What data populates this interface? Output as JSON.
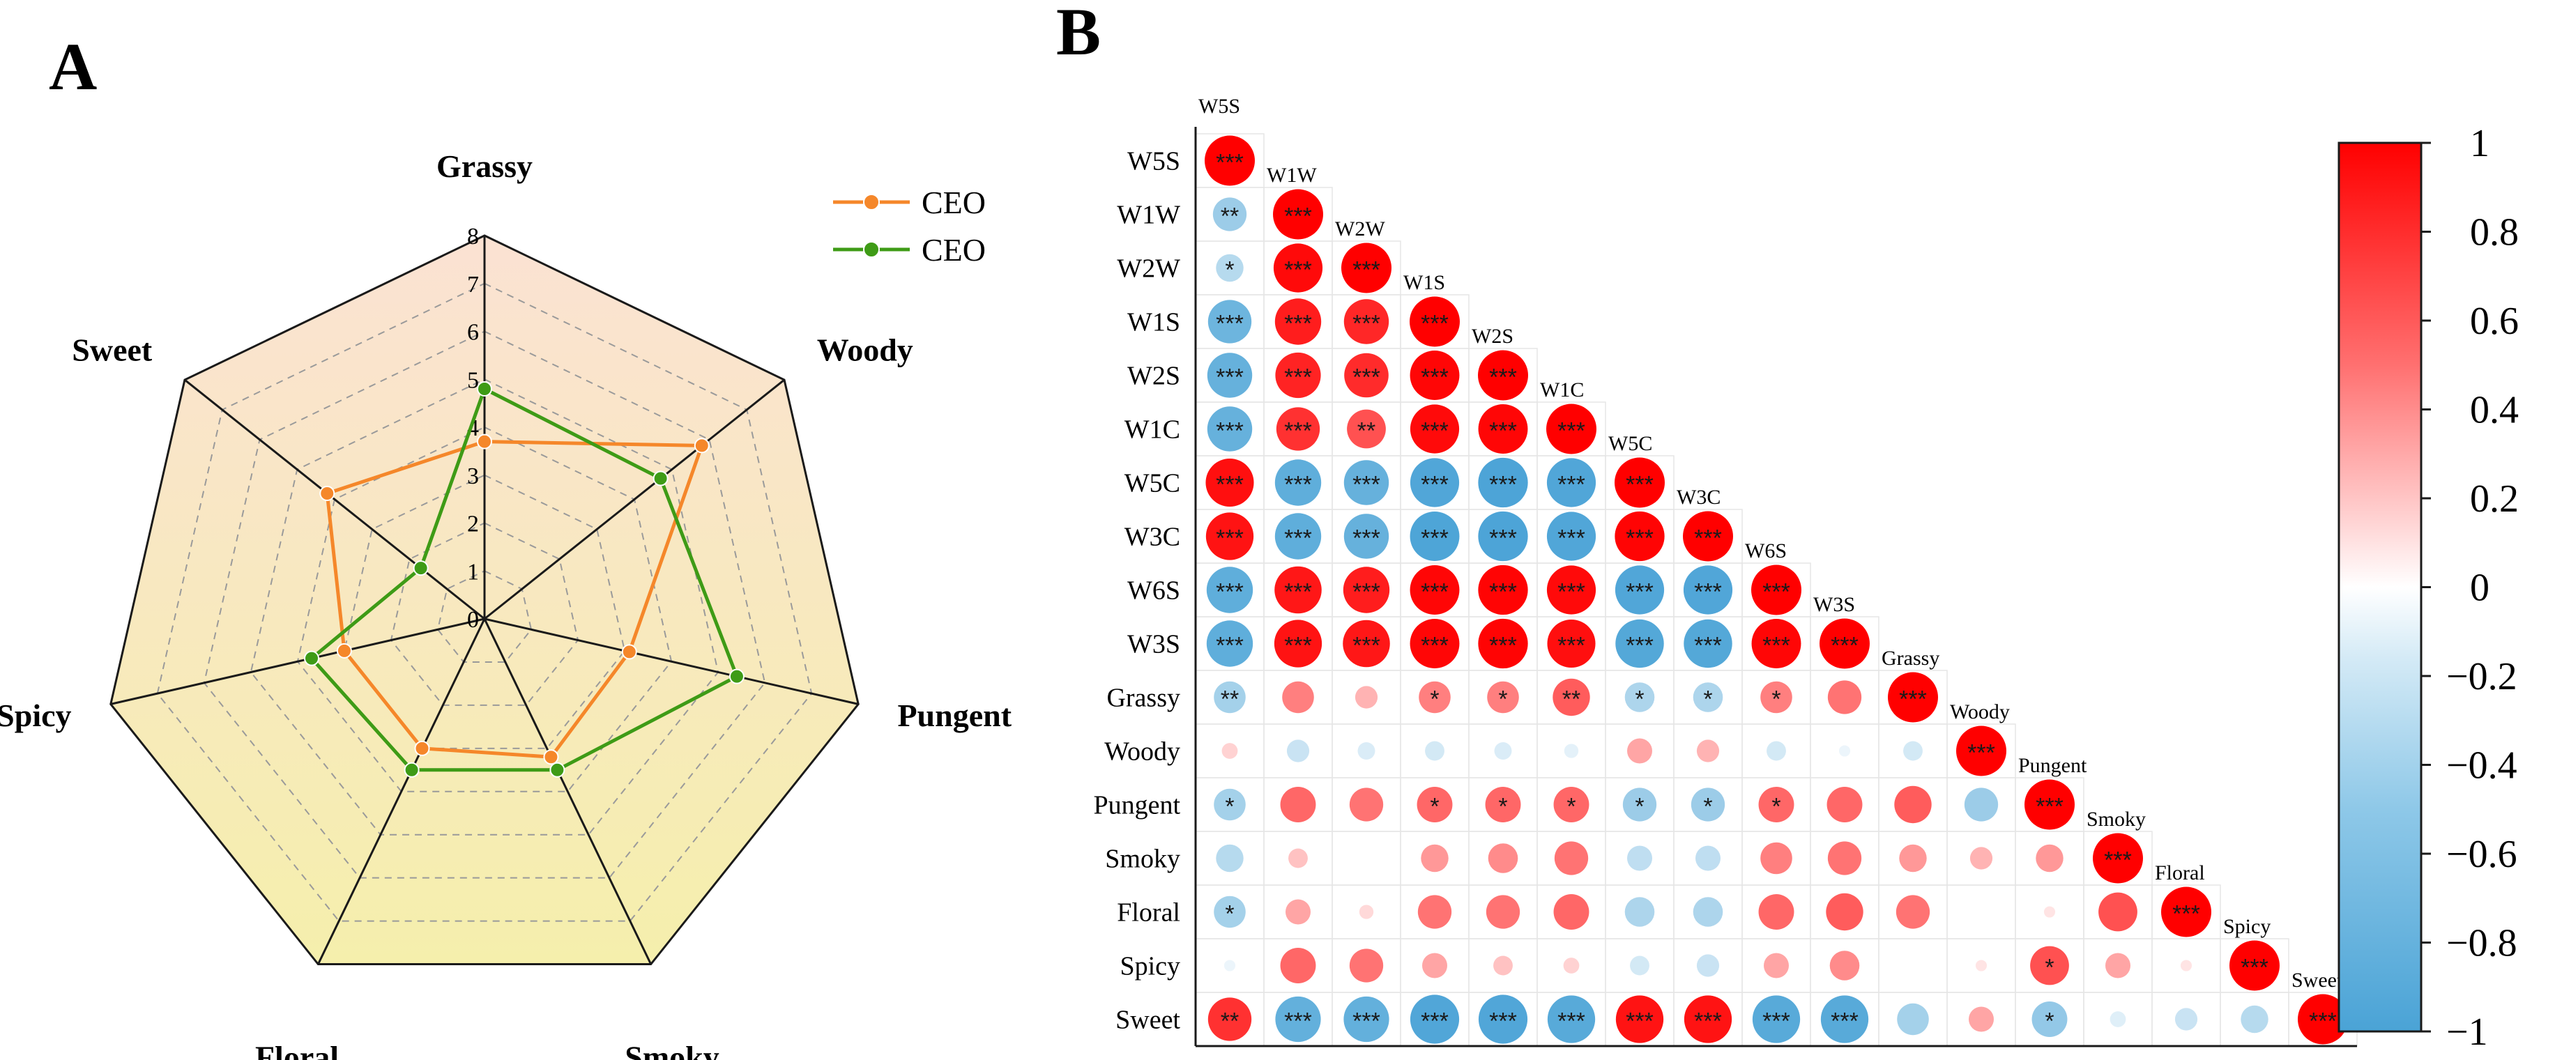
{
  "panels": {
    "a_label": "A",
    "b_label": "B"
  },
  "chart_data": [
    {
      "type": "radar",
      "axes": [
        "Grassy",
        "Woody",
        "Pungent",
        "Smoky",
        "Floral",
        "Spicy",
        "Sweet"
      ],
      "rlim": [
        0,
        8
      ],
      "r_ticks": [
        "0",
        "1",
        "2",
        "3",
        "4",
        "5",
        "6",
        "7",
        "8"
      ],
      "legend_position": "top-right",
      "series": [
        {
          "name": "CEO",
          "color": "#f5872a",
          "values": [
            3.7,
            5.8,
            3.1,
            3.2,
            3.0,
            3.0,
            4.2
          ]
        },
        {
          "name": "CEO",
          "color": "#3e9b16",
          "values": [
            4.8,
            4.7,
            5.4,
            3.5,
            3.5,
            3.7,
            1.7
          ]
        }
      ]
    },
    {
      "type": "correlation_matrix",
      "variables": [
        "W5S",
        "W1W",
        "W2W",
        "W1S",
        "W2S",
        "W1C",
        "W5C",
        "W3C",
        "W6S",
        "W3S",
        "Grassy",
        "Woody",
        "Pungent",
        "Smoky",
        "Floral",
        "Spicy",
        "Sweet"
      ],
      "matrix": [
        [
          1
        ],
        [
          -0.45,
          1
        ],
        [
          -0.3,
          0.95,
          1
        ],
        [
          -0.75,
          0.85,
          0.8,
          1
        ],
        [
          -0.8,
          0.82,
          0.78,
          0.97,
          1
        ],
        [
          -0.8,
          0.75,
          0.6,
          0.95,
          0.97,
          1
        ],
        [
          0.92,
          -0.85,
          -0.8,
          -0.95,
          -0.98,
          -0.95,
          1
        ],
        [
          0.9,
          -0.85,
          -0.8,
          -0.97,
          -0.98,
          -0.95,
          0.98,
          1
        ],
        [
          -0.85,
          0.88,
          0.85,
          0.97,
          0.98,
          0.95,
          -0.95,
          -0.95,
          1
        ],
        [
          -0.85,
          0.9,
          0.88,
          0.97,
          0.98,
          0.92,
          -0.93,
          -0.93,
          0.97,
          1
        ],
        [
          -0.4,
          0.4,
          0.2,
          0.4,
          0.4,
          0.55,
          -0.35,
          -0.35,
          0.4,
          0.45,
          1
        ],
        [
          0.1,
          -0.2,
          -0.12,
          -0.15,
          -0.12,
          -0.08,
          0.25,
          0.2,
          -0.15,
          -0.05,
          -0.15,
          1
        ],
        [
          -0.4,
          0.5,
          0.45,
          0.5,
          0.5,
          0.5,
          -0.45,
          -0.45,
          0.5,
          0.5,
          0.55,
          -0.45,
          1
        ],
        [
          -0.3,
          0.15,
          0.0,
          0.3,
          0.35,
          0.45,
          -0.25,
          -0.25,
          0.4,
          0.45,
          0.3,
          0.2,
          0.3,
          1
        ],
        [
          -0.4,
          0.25,
          0.08,
          0.45,
          0.45,
          0.5,
          -0.35,
          -0.35,
          0.5,
          0.55,
          0.45,
          0.0,
          0.05,
          0.6,
          1
        ],
        [
          -0.05,
          0.5,
          0.45,
          0.25,
          0.15,
          0.1,
          -0.15,
          -0.2,
          0.25,
          0.35,
          0.0,
          0.05,
          0.6,
          0.25,
          0.05,
          1
        ],
        [
          0.75,
          -0.82,
          -0.82,
          -0.95,
          -0.95,
          -0.9,
          0.9,
          0.9,
          -0.9,
          -0.9,
          -0.4,
          0.25,
          -0.5,
          -0.1,
          -0.2,
          -0.3,
          1
        ]
      ],
      "significance": [
        [
          "***"
        ],
        [
          "**",
          "***"
        ],
        [
          "*",
          "***",
          "***"
        ],
        [
          "***",
          "***",
          "***",
          "***"
        ],
        [
          "***",
          "***",
          "***",
          "***",
          "***"
        ],
        [
          "***",
          "***",
          "**",
          "***",
          "***",
          "***"
        ],
        [
          "***",
          "***",
          "***",
          "***",
          "***",
          "***",
          "***"
        ],
        [
          "***",
          "***",
          "***",
          "***",
          "***",
          "***",
          "***",
          "***"
        ],
        [
          "***",
          "***",
          "***",
          "***",
          "***",
          "***",
          "***",
          "***",
          "***"
        ],
        [
          "***",
          "***",
          "***",
          "***",
          "***",
          "***",
          "***",
          "***",
          "***",
          "***"
        ],
        [
          "**",
          "",
          "",
          "*",
          "*",
          "**",
          "*",
          "*",
          "*",
          "",
          "***"
        ],
        [
          "",
          "",
          "",
          "",
          "",
          "",
          "",
          "",
          "",
          "",
          "",
          "***"
        ],
        [
          "*",
          "",
          "",
          "*",
          "*",
          "*",
          "*",
          "*",
          "*",
          "",
          "",
          "",
          "***"
        ],
        [
          "",
          "",
          "",
          "",
          "",
          "",
          "",
          "",
          "",
          "",
          "",
          "",
          "",
          "***"
        ],
        [
          "*",
          "",
          "",
          "",
          "",
          "",
          "",
          "",
          "",
          "",
          "",
          "",
          "",
          "",
          "***"
        ],
        [
          "",
          "",
          "",
          "",
          "",
          "",
          "",
          "",
          "",
          "",
          "",
          "",
          "*",
          "",
          "",
          "***"
        ],
        [
          "**",
          "***",
          "***",
          "***",
          "***",
          "***",
          "***",
          "***",
          "***",
          "***",
          "",
          "",
          "*",
          "",
          "",
          "",
          "***"
        ]
      ],
      "colorbar": {
        "range": [
          -1,
          1
        ],
        "ticks": [
          "1",
          "0.8",
          "0.6",
          "0.4",
          "0.2",
          "0",
          "−0.2",
          "−0.4",
          "−0.6",
          "−0.8",
          "−1"
        ],
        "positive_color": "#ff0000",
        "negative_color": "#4aa3d6"
      }
    }
  ]
}
